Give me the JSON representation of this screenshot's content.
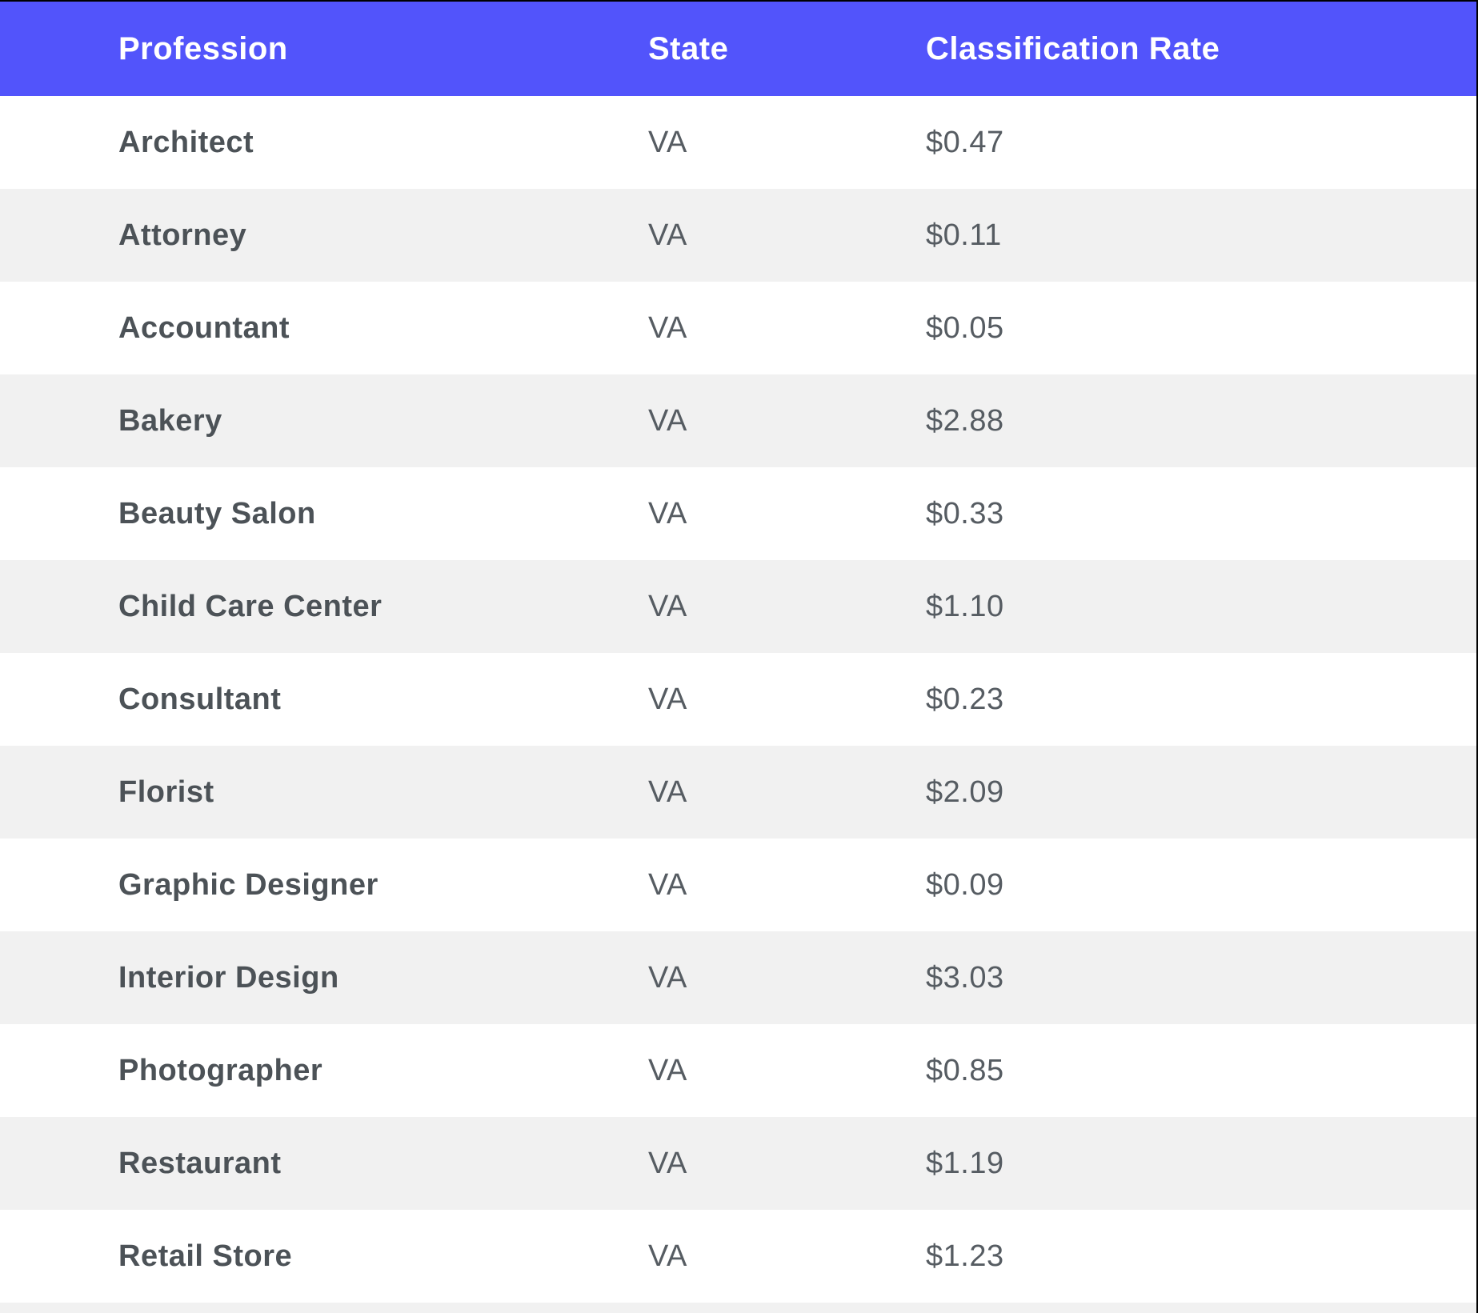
{
  "table": {
    "columns": [
      {
        "label": "Profession"
      },
      {
        "label": "State"
      },
      {
        "label": "Classification Rate"
      }
    ],
    "rows": [
      {
        "profession": "Architect",
        "state": "VA",
        "rate": "$0.47"
      },
      {
        "profession": "Attorney",
        "state": "VA",
        "rate": "$0.11"
      },
      {
        "profession": "Accountant",
        "state": "VA",
        "rate": "$0.05"
      },
      {
        "profession": "Bakery",
        "state": "VA",
        "rate": "$2.88"
      },
      {
        "profession": "Beauty Salon",
        "state": "VA",
        "rate": "$0.33"
      },
      {
        "profession": "Child Care Center",
        "state": "VA",
        "rate": "$1.10"
      },
      {
        "profession": "Consultant",
        "state": "VA",
        "rate": "$0.23"
      },
      {
        "profession": "Florist",
        "state": "VA",
        "rate": "$2.09"
      },
      {
        "profession": "Graphic Designer",
        "state": "VA",
        "rate": "$0.09"
      },
      {
        "profession": "Interior Design",
        "state": "VA",
        "rate": "$3.03"
      },
      {
        "profession": "Photographer",
        "state": "VA",
        "rate": "$0.85"
      },
      {
        "profession": "Restaurant",
        "state": "VA",
        "rate": "$1.19"
      },
      {
        "profession": "Retail Store",
        "state": "VA",
        "rate": "$1.23"
      }
    ]
  },
  "colors": {
    "header_bg": "#5254fb",
    "header_text": "#ffffff",
    "row_alt_bg": "#f1f1f1",
    "cell_text": "#565c62",
    "cell_text_bold": "#4c5257"
  }
}
